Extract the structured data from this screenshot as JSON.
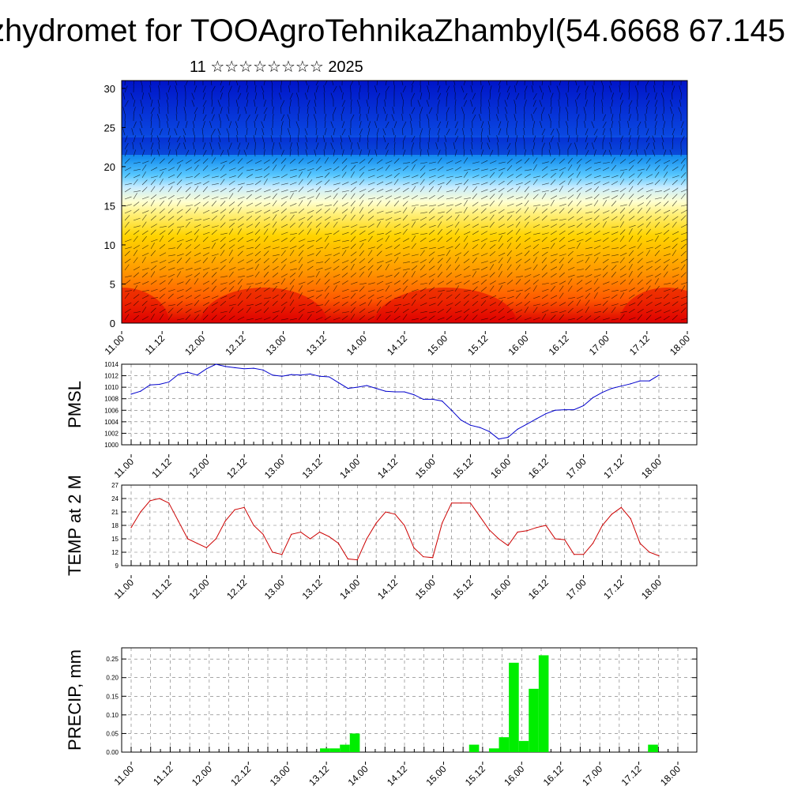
{
  "title": "zhydromet for TOOAgroTehnikaZhambyl(54.6668 67.145",
  "subtitle": "11 ☆☆☆☆☆☆☆☆ 2025",
  "x_ticks": [
    "11.00",
    "11.12",
    "12.00",
    "12.12",
    "13.00",
    "13.12",
    "14.00",
    "14.12",
    "15.00",
    "15.12",
    "16.00",
    "16.12",
    "17.00",
    "17.12",
    "18.00"
  ],
  "colors": {
    "pmsl": "#0000cc",
    "temp": "#cc0000",
    "precip": "#00ee00",
    "frame": "#000000"
  },
  "chart_data": [
    {
      "type": "heatmap",
      "x": [
        "11.00",
        "11.12",
        "12.00",
        "12.12",
        "13.00",
        "13.12",
        "14.00",
        "14.12",
        "15.00",
        "15.12",
        "16.00",
        "16.12",
        "17.00",
        "17.12",
        "18.00"
      ],
      "yticks": [
        0,
        5,
        10,
        15,
        20,
        25,
        30
      ],
      "ylim": [
        0,
        31
      ],
      "xlabel": "",
      "ylabel": "",
      "overlay": "wind barbs",
      "colormap": [
        "#dc0000",
        "#ff5a00",
        "#ff9a00",
        "#ffd400",
        "#fff07a",
        "#ffffd0",
        "#c8ecff",
        "#58c8ff",
        "#1890f0",
        "#0a46e0",
        "#0014c8"
      ]
    },
    {
      "type": "line",
      "name": "PMSL",
      "ylabel": "PMSL",
      "ylim": [
        1000,
        1014
      ],
      "yticks": [
        1000,
        1002,
        1004,
        1006,
        1008,
        1010,
        1012,
        1014
      ],
      "step_hours": 3,
      "values": [
        1008.8,
        1009.3,
        1010.4,
        1010.5,
        1010.9,
        1012.2,
        1012.6,
        1012.1,
        1013.2,
        1014.0,
        1013.6,
        1013.4,
        1013.2,
        1013.3,
        1013.0,
        1012.1,
        1011.9,
        1012.2,
        1012.1,
        1012.3,
        1011.9,
        1011.8,
        1010.8,
        1009.8,
        1010.0,
        1010.3,
        1009.8,
        1009.3,
        1009.2,
        1009.2,
        1008.7,
        1007.9,
        1007.9,
        1007.6,
        1006.0,
        1004.3,
        1003.4,
        1003.0,
        1002.3,
        1001.0,
        1001.3,
        1002.7,
        1003.6,
        1004.5,
        1005.4,
        1006.0,
        1006.1,
        1006.1,
        1006.8,
        1008.2,
        1009.1,
        1009.8,
        1010.2,
        1010.6,
        1011.1,
        1011.1,
        1012.1
      ]
    },
    {
      "type": "line",
      "name": "TEMP at 2 M",
      "ylabel": "TEMP at 2 M",
      "ylim": [
        9,
        27
      ],
      "yticks": [
        9,
        12,
        15,
        18,
        21,
        24,
        27
      ],
      "step_hours": 3,
      "values": [
        17.5,
        21.0,
        23.5,
        24.0,
        23.0,
        19.0,
        15.0,
        14.0,
        13.0,
        15.0,
        19.0,
        21.5,
        22.0,
        18.0,
        16.0,
        12.0,
        11.5,
        16.0,
        16.5,
        15.0,
        16.5,
        15.5,
        14.0,
        10.5,
        10.3,
        15.0,
        18.5,
        21.0,
        20.5,
        18.0,
        13.0,
        11.0,
        10.8,
        18.5,
        23.0,
        23.0,
        23.0,
        20.0,
        17.0,
        15.0,
        13.5,
        16.5,
        16.8,
        17.5,
        18.0,
        15.0,
        14.8,
        11.5,
        11.5,
        14.0,
        18.0,
        20.5,
        22.0,
        19.5,
        14.0,
        12.0,
        11.2
      ]
    },
    {
      "type": "bar",
      "name": "PRECIP, mm",
      "ylabel": "PRECIP, mm",
      "ylim": [
        0,
        0.28
      ],
      "yticks": [
        0.0,
        0.05,
        0.1,
        0.15,
        0.2,
        0.25
      ],
      "step_hours": 3,
      "values": [
        0,
        0,
        0,
        0,
        0,
        0,
        0,
        0,
        0,
        0,
        0,
        0,
        0,
        0,
        0,
        0,
        0,
        0,
        0,
        0.01,
        0.01,
        0.02,
        0.05,
        0,
        0,
        0,
        0,
        0,
        0,
        0,
        0,
        0,
        0,
        0,
        0.02,
        0,
        0.01,
        0.04,
        0.24,
        0.03,
        0.17,
        0.26,
        0,
        0,
        0,
        0,
        0,
        0,
        0,
        0,
        0,
        0,
        0.02,
        0,
        0,
        0
      ]
    }
  ]
}
